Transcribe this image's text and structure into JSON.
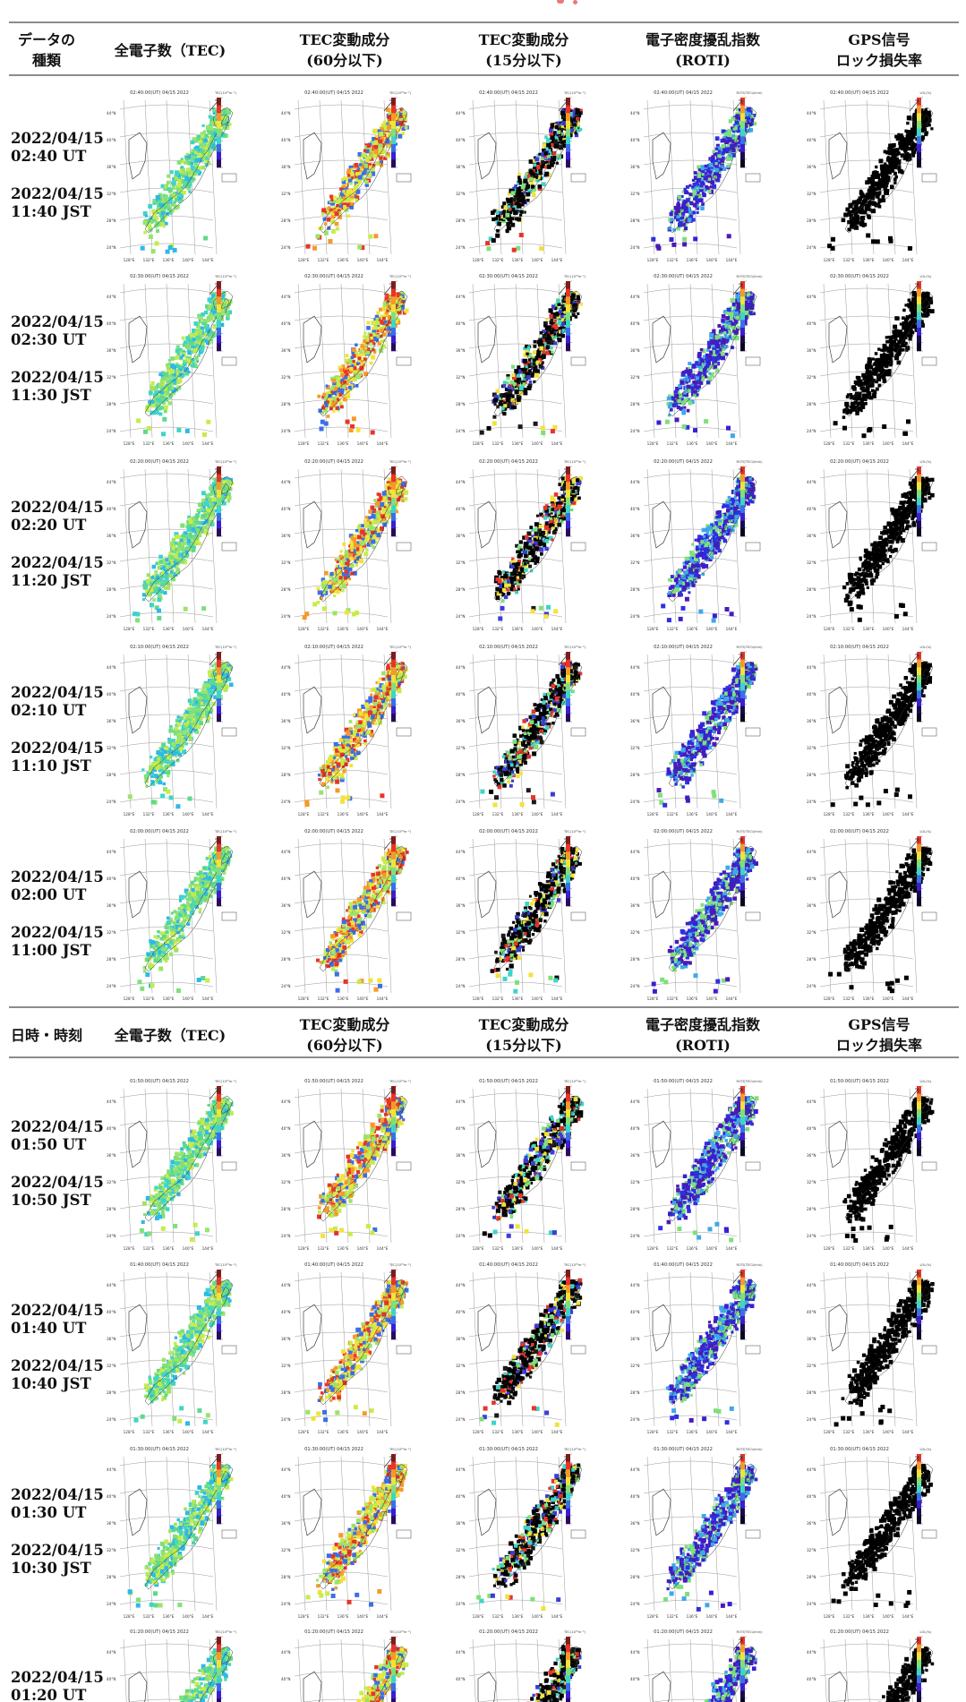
{
  "header_top": {
    "col0": [
      "データの",
      "種類"
    ],
    "col1": [
      "全電子数（TEC)"
    ],
    "col2": [
      "TEC変動成分",
      "(60分以下)"
    ],
    "col3": [
      "TEC変動成分",
      "(15分以下)"
    ],
    "col4": [
      "電子密度擾乱指数",
      "(ROTI)"
    ],
    "col5": [
      "GPS信号",
      "ロック損失率"
    ]
  },
  "header_bottom": {
    "col0": [
      "日時・時刻"
    ],
    "col1": [
      "全電子数（TEC)"
    ],
    "col2": [
      "TEC変動成分",
      "(60分以下)"
    ],
    "col3": [
      "TEC変動成分",
      "(15分以下)"
    ],
    "col4": [
      "電子密度擾乱指数",
      "(ROTI)"
    ],
    "col5": [
      "GPS信号",
      "ロック損失率"
    ]
  },
  "rows": [
    {
      "ut": "2022/04/15 02:40 UT",
      "jst": "2022/04/15 11:40 JST",
      "map_title": "02:40:00(UT) 04/15 2022"
    },
    {
      "ut": "2022/04/15 02:30 UT",
      "jst": "2022/04/15 11:30 JST",
      "map_title": "02:30:00(UT) 04/15 2022"
    },
    {
      "ut": "2022/04/15 02:20 UT",
      "jst": "2022/04/15 11:20 JST",
      "map_title": "02:20:00(UT) 04/15 2022"
    },
    {
      "ut": "2022/04/15 02:10 UT",
      "jst": "2022/04/15 11:10 JST",
      "map_title": "02:10:00(UT) 04/15 2022"
    },
    {
      "ut": "2022/04/15 02:00 UT",
      "jst": "2022/04/15 11:00 JST",
      "map_title": "02:00:00(UT) 04/15 2022"
    },
    {
      "ut": "2022/04/15 01:50 UT",
      "jst": "2022/04/15 10:50 JST",
      "map_title": "01:50:00(UT) 04/15 2022"
    },
    {
      "ut": "2022/04/15 01:40 UT",
      "jst": "2022/04/15 10:40 JST",
      "map_title": "01:40:00(UT) 04/15 2022"
    },
    {
      "ut": "2022/04/15 01:30 UT",
      "jst": "2022/04/15 10:30 JST",
      "map_title": "01:30:00(UT) 04/15 2022"
    },
    {
      "ut": "2022/04/15 01:20 UT",
      "jst": "",
      "map_title": "01:20:00(UT) 04/15 2022"
    }
  ],
  "map_axes": {
    "lat_ticks": [
      "44°N",
      "40°N",
      "36°N",
      "32°N",
      "28°N",
      "24°N"
    ],
    "lon_ticks": [
      "128°E",
      "132°E",
      "136°E",
      "140°E",
      "144°E"
    ]
  },
  "colorbar_units": [
    "TEC(10¹⁶m⁻²)",
    "TEC(10¹⁶m⁻²)",
    "TEC(10¹⁶m⁻²)",
    "ROTI(TECU/min)",
    "LOL(%)"
  ],
  "column_colors": {
    "tec": [
      "#9be36a",
      "#7fe07a",
      "#5fd98a",
      "#c6ec4a",
      "#3fd4c8",
      "#2fb8e8"
    ],
    "dtec60": [
      "#9be36a",
      "#c6ec4a",
      "#f2e23a",
      "#f59a2a",
      "#e8342a",
      "#3c6ee8"
    ],
    "dtec15": [
      "#000000",
      "#1a1a1a",
      "#e8342a",
      "#f2e23a",
      "#3fd4c8",
      "#3c3cd8",
      "#7fe07a"
    ],
    "roti": [
      "#3a1fd0",
      "#4a1ab8",
      "#2f30e0",
      "#3fa8e8",
      "#7fe07a"
    ],
    "lol": [
      "#000000"
    ]
  }
}
